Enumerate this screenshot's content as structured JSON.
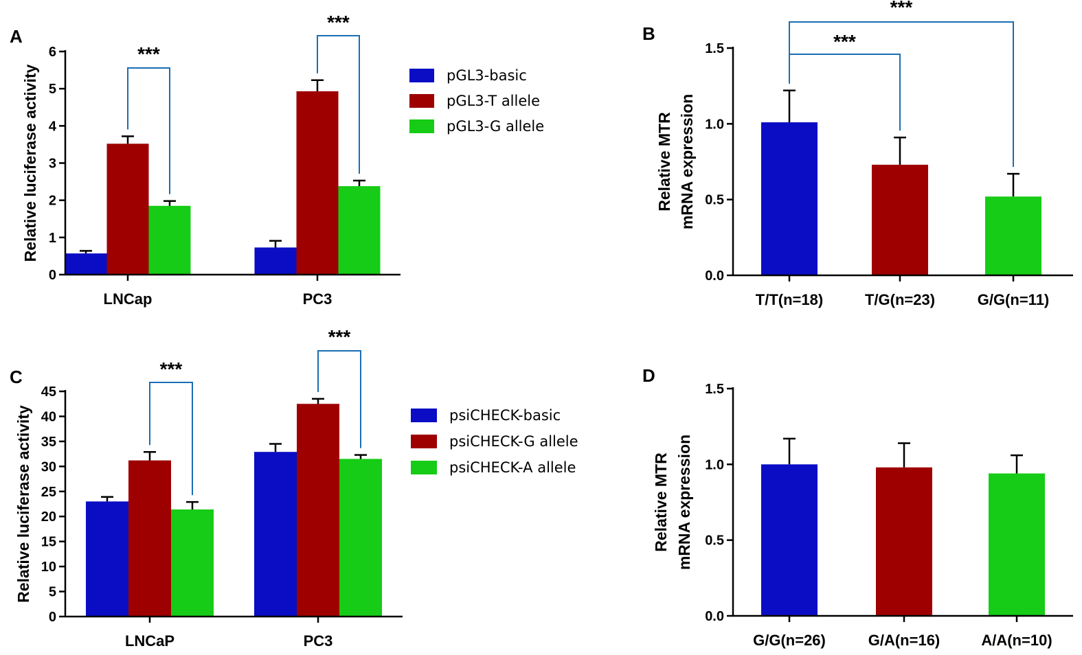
{
  "colors": {
    "blue": "#0a0dc4",
    "red": "#9e0000",
    "green": "#16cc16",
    "bracket": "#1a6db4"
  },
  "chart_data": [
    {
      "id": "A",
      "type": "bar",
      "panel_label": "A",
      "ylabel": "Relative luciferase activity",
      "xlabel": "",
      "ylim": [
        0,
        6
      ],
      "yticks": [
        0,
        1,
        2,
        3,
        4,
        5,
        6
      ],
      "ytick_labels": [
        "0",
        "1",
        "2",
        "3",
        "4",
        "5",
        "6"
      ],
      "categories": [
        "LNCap",
        "PC3"
      ],
      "series": [
        {
          "name": "pGL3-basic",
          "color": "#0a0dc4",
          "values": [
            0.57,
            0.73
          ],
          "errors": [
            0.07,
            0.18
          ]
        },
        {
          "name": "pGL3-T allele",
          "color": "#9e0000",
          "values": [
            3.52,
            4.93
          ],
          "errors": [
            0.2,
            0.3
          ]
        },
        {
          "name": "pGL3-G allele",
          "color": "#16cc16",
          "values": [
            1.85,
            2.38
          ],
          "errors": [
            0.13,
            0.15
          ]
        }
      ],
      "legend": {
        "position": "right"
      },
      "significance": [
        {
          "category": 0,
          "from_series": 1,
          "to_series": 2,
          "label": "***"
        },
        {
          "category": 1,
          "from_series": 1,
          "to_series": 2,
          "label": "***"
        }
      ]
    },
    {
      "id": "B",
      "type": "bar",
      "panel_label": "B",
      "ylabel": [
        "Relative MTR",
        "mRNA expression"
      ],
      "xlabel": "",
      "ylim": [
        0,
        1.5
      ],
      "yticks": [
        0,
        0.5,
        1.0,
        1.5
      ],
      "ytick_labels": [
        "0.0",
        "0.5",
        "1.0",
        "1.5"
      ],
      "categories": [
        "T/T(n=18)",
        "T/G(n=23)",
        "G/G(n=11)"
      ],
      "colors": [
        "#0a0dc4",
        "#9e0000",
        "#16cc16"
      ],
      "values": [
        1.01,
        0.73,
        0.52
      ],
      "errors": [
        0.21,
        0.18,
        0.15
      ],
      "significance": [
        {
          "from": 0,
          "to": 1,
          "label": "***"
        },
        {
          "from": 0,
          "to": 2,
          "label": "***"
        }
      ]
    },
    {
      "id": "C",
      "type": "bar",
      "panel_label": "C",
      "ylabel": "Relative luciferase activity",
      "xlabel": "",
      "ylim": [
        0,
        45
      ],
      "yticks": [
        0,
        5,
        10,
        15,
        20,
        25,
        30,
        35,
        40,
        45
      ],
      "ytick_labels": [
        "0",
        "5",
        "10",
        "15",
        "20",
        "25",
        "30",
        "35",
        "40",
        "45"
      ],
      "categories": [
        "LNCaP",
        "PC3"
      ],
      "series": [
        {
          "name": "psiCHECK-basic",
          "color": "#0a0dc4",
          "values": [
            23.0,
            32.9
          ],
          "errors": [
            0.9,
            1.6
          ]
        },
        {
          "name": "psiCHECK-G allele",
          "color": "#9e0000",
          "values": [
            31.2,
            42.5
          ],
          "errors": [
            1.7,
            1.0
          ]
        },
        {
          "name": "psiCHECK-A allele",
          "color": "#16cc16",
          "values": [
            21.4,
            31.5
          ],
          "errors": [
            1.5,
            0.8
          ]
        }
      ],
      "legend": {
        "position": "right"
      },
      "significance": [
        {
          "category": 0,
          "from_series": 1,
          "to_series": 2,
          "label": "***"
        },
        {
          "category": 1,
          "from_series": 1,
          "to_series": 2,
          "label": "***"
        }
      ]
    },
    {
      "id": "D",
      "type": "bar",
      "panel_label": "D",
      "ylabel": [
        "Relative MTR",
        "mRNA expression"
      ],
      "xlabel": "",
      "ylim": [
        0,
        1.5
      ],
      "yticks": [
        0,
        0.5,
        1.0,
        1.5
      ],
      "ytick_labels": [
        "0.0",
        "0.5",
        "1.0",
        "1.5"
      ],
      "categories": [
        "G/G(n=26)",
        "G/A(n=16)",
        "A/A(n=10)"
      ],
      "colors": [
        "#0a0dc4",
        "#9e0000",
        "#16cc16"
      ],
      "values": [
        1.0,
        0.98,
        0.94
      ],
      "errors": [
        0.17,
        0.16,
        0.12
      ],
      "significance": []
    }
  ]
}
